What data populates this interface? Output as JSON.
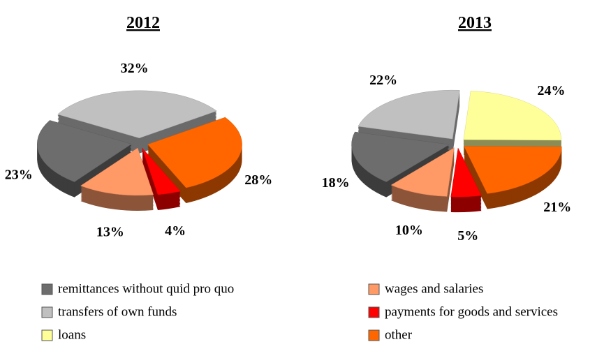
{
  "chart_data": [
    {
      "type": "pie",
      "title": "2012",
      "values": [
        23,
        32,
        null,
        13,
        4,
        28
      ],
      "value_labels": [
        "23%",
        "32%",
        null,
        "13%",
        "4%",
        "28%"
      ]
    },
    {
      "type": "pie",
      "title": "2013",
      "values": [
        18,
        22,
        24,
        10,
        5,
        21
      ],
      "value_labels": [
        "18%",
        "22%",
        "24%",
        "10%",
        "5%",
        "21%"
      ]
    }
  ],
  "legend": [
    {
      "name": "remittances without quid pro quo",
      "color": "#6d6d6d"
    },
    {
      "name": "transfers of own funds",
      "color": "#c0c0c0"
    },
    {
      "name": "loans",
      "color": "#ffff99"
    },
    {
      "name": "wages and salaries",
      "color": "#ff9966"
    },
    {
      "name": "payments for goods and services",
      "color": "#ff0000"
    },
    {
      "name": "other",
      "color": "#ff6600"
    }
  ]
}
